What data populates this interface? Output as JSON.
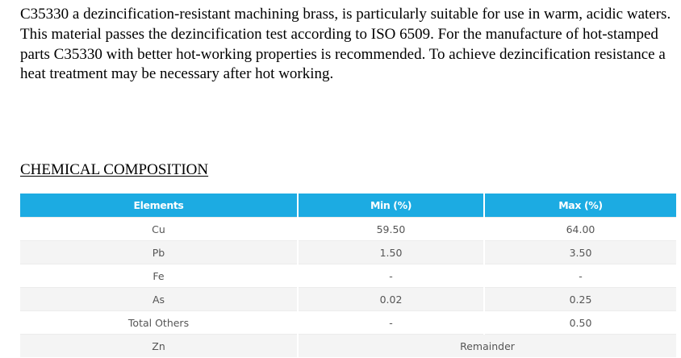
{
  "intro_text": "C35330 a dezincification-resistant machining brass, is particularly suitable for use in warm, acidic waters. This material passes the dezincification test according to ISO 6509. For the manufacture of hot-stamped parts C35330 with better hot-working properties is recommended. To achieve dezincification resistance a heat treatment may be necessary after hot working.",
  "section_heading": "CHEMICAL COMPOSITION",
  "table": {
    "headers": [
      "Elements",
      "Min (%)",
      "Max (%)"
    ],
    "rows": [
      {
        "element": "Cu",
        "min": "59.50",
        "max": "64.00"
      },
      {
        "element": "Pb",
        "min": "1.50",
        "max": "3.50"
      },
      {
        "element": "Fe",
        "min": "-",
        "max": "-"
      },
      {
        "element": "As",
        "min": "0.02",
        "max": "0.25"
      },
      {
        "element": "Total Others",
        "min": "-",
        "max": "0.50"
      },
      {
        "element": "Zn",
        "combined": "Remainder"
      }
    ]
  },
  "colors": {
    "header_background": "#1cabe2",
    "header_text": "#ffffff",
    "cell_text": "#555555",
    "stripe_background": "#f4f4f4"
  }
}
